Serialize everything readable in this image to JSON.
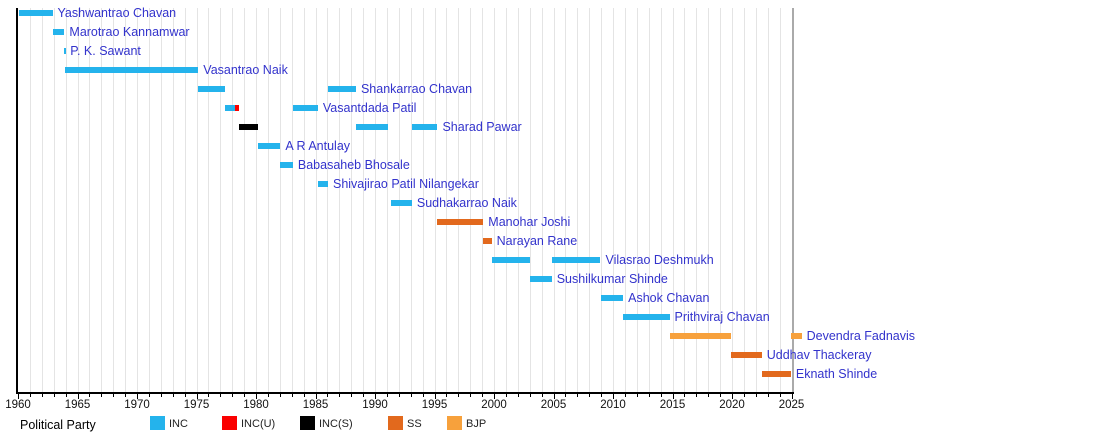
{
  "chart_data": {
    "type": "gantt",
    "legend_title": "Political Party",
    "x_axis": {
      "min": 1960,
      "max": 2025.9,
      "major_tick_interval": 5,
      "minor_tick_interval": 1,
      "major_tick_labels": [
        "1960",
        "1965",
        "1970",
        "1975",
        "1980",
        "1985",
        "1990",
        "1995",
        "2000",
        "2005",
        "2010",
        "2015",
        "2020",
        "2025"
      ]
    },
    "grid": "vertical-yearly",
    "legend_position": "bottom",
    "parties": [
      {
        "label": "INC",
        "color": "#24b3ec"
      },
      {
        "label": "INC(U)",
        "color": "#fa0000"
      },
      {
        "label": "INC(S)",
        "color": "#000000"
      },
      {
        "label": "SS",
        "color": "#e2691d"
      },
      {
        "label": "BJP",
        "color": "#f7a13c"
      }
    ],
    "people": [
      {
        "name": "Yashwantrao Chavan",
        "bars": [
          {
            "start": 1960.1,
            "end": 1962.9,
            "party": "INC"
          }
        ]
      },
      {
        "name": "Marotrao Kannamwar",
        "bars": [
          {
            "start": 1962.9,
            "end": 1963.9,
            "party": "INC"
          }
        ]
      },
      {
        "name": "P. K. Sawant",
        "bars": [
          {
            "start": 1963.9,
            "end": 1963.97,
            "party": "INC"
          }
        ]
      },
      {
        "name": "Vasantrao Naik",
        "bars": [
          {
            "start": 1963.95,
            "end": 1975.15,
            "party": "INC"
          }
        ]
      },
      {
        "name": "Shankarrao Chavan",
        "bars": [
          {
            "start": 1975.15,
            "end": 1977.37,
            "party": "INC"
          },
          {
            "start": 1986.05,
            "end": 1988.4,
            "party": "INC"
          }
        ]
      },
      {
        "name": "Vasantdada Patil",
        "bars": [
          {
            "start": 1977.37,
            "end": 1978.2,
            "party": "INC"
          },
          {
            "start": 1978.2,
            "end": 1978.6,
            "party": "INC(U)"
          },
          {
            "start": 1983.1,
            "end": 1985.2,
            "party": "INC"
          }
        ]
      },
      {
        "name": "Sharad Pawar",
        "bars": [
          {
            "start": 1978.6,
            "end": 1980.15,
            "party": "INC(S)"
          },
          {
            "start": 1988.4,
            "end": 1991.1,
            "party": "INC"
          },
          {
            "start": 1993.1,
            "end": 1995.25,
            "party": "INC"
          }
        ]
      },
      {
        "name": "A R Antulay",
        "bars": [
          {
            "start": 1980.2,
            "end": 1982.05,
            "party": "INC"
          }
        ]
      },
      {
        "name": "Babasaheb Bhosale",
        "bars": [
          {
            "start": 1982.05,
            "end": 1983.1,
            "party": "INC"
          }
        ]
      },
      {
        "name": "Shivajirao Patil Nilangekar",
        "bars": [
          {
            "start": 1985.2,
            "end": 1986.05,
            "party": "INC"
          }
        ]
      },
      {
        "name": "Sudhakarrao Naik",
        "bars": [
          {
            "start": 1991.35,
            "end": 1993.1,
            "party": "INC"
          }
        ]
      },
      {
        "name": "Manohar Joshi",
        "bars": [
          {
            "start": 1995.25,
            "end": 1999.1,
            "party": "SS"
          }
        ]
      },
      {
        "name": "Narayan Rane",
        "bars": [
          {
            "start": 1999.1,
            "end": 1999.8,
            "party": "SS"
          }
        ]
      },
      {
        "name": "Vilasrao Deshmukh",
        "bars": [
          {
            "start": 1999.8,
            "end": 2003.05,
            "party": "INC"
          },
          {
            "start": 2004.85,
            "end": 2008.95,
            "party": "INC"
          }
        ]
      },
      {
        "name": "Sushilkumar Shinde",
        "bars": [
          {
            "start": 2003.05,
            "end": 2004.85,
            "party": "INC"
          }
        ]
      },
      {
        "name": "Ashok Chavan",
        "bars": [
          {
            "start": 2008.95,
            "end": 2010.85,
            "party": "INC"
          }
        ]
      },
      {
        "name": "Prithviraj Chavan",
        "bars": [
          {
            "start": 2010.85,
            "end": 2014.75,
            "party": "INC"
          }
        ]
      },
      {
        "name": "Devendra Fadnavis",
        "bars": [
          {
            "start": 2014.8,
            "end": 2019.9,
            "party": "BJP"
          },
          {
            "start": 2024.95,
            "end": 2025.85,
            "party": "BJP"
          }
        ]
      },
      {
        "name": "Uddhav Thackeray",
        "bars": [
          {
            "start": 2019.9,
            "end": 2022.5,
            "party": "SS"
          }
        ]
      },
      {
        "name": "Eknath Shinde",
        "bars": [
          {
            "start": 2022.5,
            "end": 2024.95,
            "party": "SS"
          }
        ]
      }
    ]
  }
}
